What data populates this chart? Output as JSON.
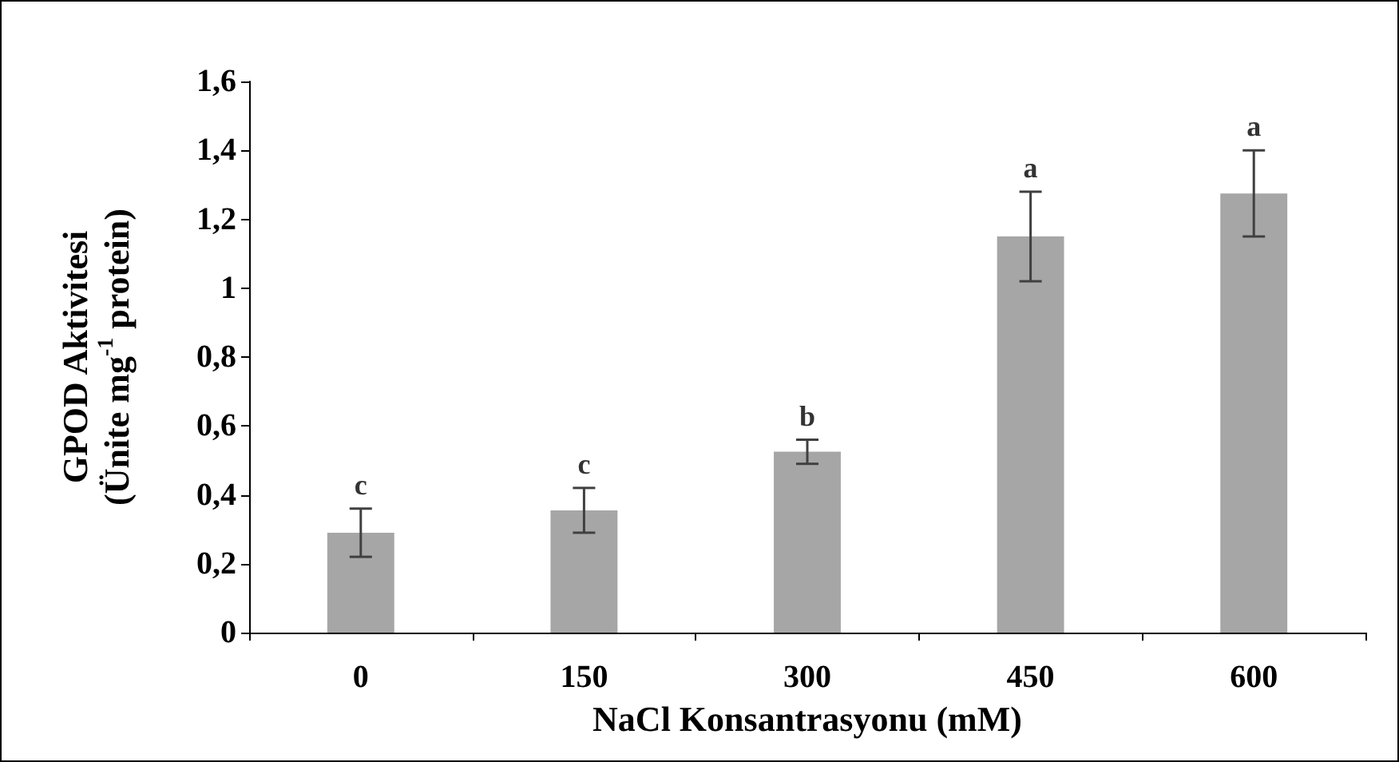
{
  "chart_data": {
    "type": "bar",
    "xlabel": "NaCl Konsantrasyonu (mM)",
    "ylabel": "GPOD Aktivitesi\n(Ünite mg$^{-1}$ protein)",
    "categories": [
      "0",
      "150",
      "300",
      "450",
      "600"
    ],
    "values": [
      0.29,
      0.355,
      0.525,
      1.15,
      1.275
    ],
    "errors": [
      0.07,
      0.065,
      0.035,
      0.13,
      0.125
    ],
    "color": "#a6a6a6",
    "ylim": [
      0,
      1.6
    ],
    "yticks": [
      0,
      {
        "value": 0.2,
        "label": "0,2"
      },
      {
        "value": 0.4,
        "label": "0,4"
      },
      {
        "value": 0.6,
        "label": "0,6"
      },
      {
        "value": 0.8,
        "label": "0,8"
      },
      1,
      {
        "value": 1.2,
        "label": "1,2"
      },
      {
        "value": 1.4,
        "label": "1,4"
      },
      {
        "value": 1.6,
        "label": "1,6"
      }
    ],
    "annotations": [
      {
        "text": "c",
        "x": "0",
        "y": 0.36
      },
      {
        "text": "c",
        "x": "150",
        "y": 0.42
      },
      {
        "text": "b",
        "x": "300",
        "y": 0.56
      },
      {
        "text": "a",
        "x": "450",
        "y": 1.28
      },
      {
        "text": "a",
        "x": "600",
        "y": 1.4
      }
    ],
    "grid": false
  }
}
